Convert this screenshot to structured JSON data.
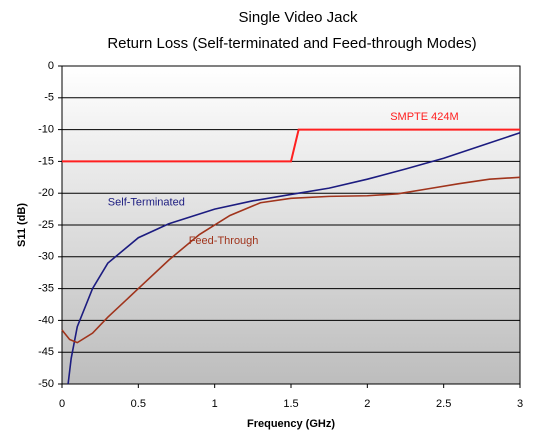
{
  "chart_data": {
    "type": "line",
    "title": "Single Video Jack",
    "subtitle": "Return Loss (Self-terminated  and Feed-through Modes)",
    "x_label": "Frequency (GHz)",
    "y_label": "S11 (dB)",
    "xlim": [
      0,
      3
    ],
    "xticks": [
      0,
      0.5,
      1,
      1.5,
      2,
      2.5,
      3
    ],
    "ylim": [
      -50,
      0
    ],
    "yticks": [
      0,
      -5,
      -10,
      -15,
      -20,
      -25,
      -30,
      -35,
      -40,
      -45,
      -50
    ],
    "grid": true,
    "series": [
      {
        "name": "SMPTE 424M",
        "color": "#ff2020",
        "x": [
          0,
          1.5,
          1.55,
          3
        ],
        "values": [
          -15,
          -15,
          -10,
          -10
        ]
      },
      {
        "name": "Self-Terminated",
        "color": "#1c1c80",
        "x": [
          0.04,
          0.06,
          0.1,
          0.2,
          0.3,
          0.5,
          0.7,
          1.0,
          1.25,
          1.5,
          1.75,
          2.0,
          2.25,
          2.5,
          2.75,
          3.0
        ],
        "values": [
          -50,
          -46,
          -41,
          -35,
          -31,
          -27,
          -24.8,
          -22.5,
          -21.2,
          -20.2,
          -19.2,
          -17.8,
          -16.2,
          -14.5,
          -12.5,
          -10.5
        ]
      },
      {
        "name": "Feed-Through",
        "color": "#a0341c",
        "x": [
          0,
          0.05,
          0.1,
          0.2,
          0.3,
          0.5,
          0.7,
          0.9,
          1.1,
          1.3,
          1.5,
          1.75,
          2.0,
          2.2,
          2.4,
          2.6,
          2.8,
          3.0
        ],
        "values": [
          -41.5,
          -43,
          -43.5,
          -42,
          -39.5,
          -35,
          -30.5,
          -26.5,
          -23.5,
          -21.5,
          -20.8,
          -20.5,
          -20.4,
          -20.1,
          -19.3,
          -18.5,
          -17.8,
          -17.5
        ]
      }
    ]
  }
}
